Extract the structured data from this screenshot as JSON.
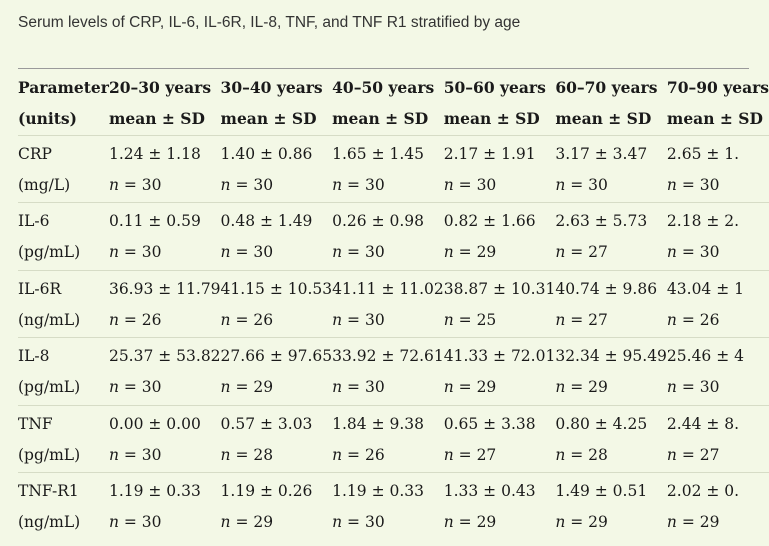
{
  "caption": "Serum levels of CRP, IL-6, IL-6R, IL-8, TNF, and TNF R1 stratified by age",
  "header": {
    "param": [
      "Parameter",
      "(units)"
    ],
    "groups": [
      {
        "age": "20–30 years",
        "stat": "mean ± SD"
      },
      {
        "age": "30–40 years",
        "stat": "mean ± SD"
      },
      {
        "age": "40–50 years",
        "stat": "mean ± SD"
      },
      {
        "age": "50–60 years",
        "stat": "mean ± SD"
      },
      {
        "age": "60–70 years",
        "stat": "mean ± SD"
      },
      {
        "age": "70–90 years",
        "stat": "mean ± SD"
      }
    ]
  },
  "rows": [
    {
      "name": "CRP",
      "unit": "(mg/L)",
      "cells": [
        {
          "val": "1.24 ± 1.18",
          "n": "30"
        },
        {
          "val": "1.40 ± 0.86",
          "n": "30"
        },
        {
          "val": "1.65 ± 1.45",
          "n": "30"
        },
        {
          "val": "2.17 ± 1.91",
          "n": "30"
        },
        {
          "val": "3.17 ± 3.47",
          "n": "30"
        },
        {
          "val": "2.65 ± 1.",
          "n": "30"
        }
      ]
    },
    {
      "name": "IL-6",
      "unit": "(pg/mL)",
      "cells": [
        {
          "val": "0.11 ± 0.59",
          "n": "30"
        },
        {
          "val": "0.48 ± 1.49",
          "n": "30"
        },
        {
          "val": "0.26 ± 0.98",
          "n": "30"
        },
        {
          "val": "0.82 ± 1.66",
          "n": "29"
        },
        {
          "val": "2.63 ± 5.73",
          "n": "27"
        },
        {
          "val": "2.18 ± 2.",
          "n": "30"
        }
      ]
    },
    {
      "name": "IL-6R",
      "unit": "(ng/mL)",
      "cells": [
        {
          "val": "36.93 ± 11.79",
          "n": "26"
        },
        {
          "val": "41.15 ± 10.53",
          "n": "26"
        },
        {
          "val": "41.11 ± 11.02",
          "n": "30"
        },
        {
          "val": "38.87 ± 10.31",
          "n": "25"
        },
        {
          "val": "40.74 ± 9.86",
          "n": "27"
        },
        {
          "val": "43.04 ± 1",
          "n": "26"
        }
      ]
    },
    {
      "name": "IL-8",
      "unit": "(pg/mL)",
      "cells": [
        {
          "val": "25.37 ± 53.82",
          "n": "30"
        },
        {
          "val": "27.66 ± 97.65",
          "n": "29"
        },
        {
          "val": "33.92 ± 72.61",
          "n": "30"
        },
        {
          "val": "41.33 ± 72.01",
          "n": "29"
        },
        {
          "val": "32.34 ± 95.49",
          "n": "29"
        },
        {
          "val": "25.46 ± 4",
          "n": "30"
        }
      ]
    },
    {
      "name": "TNF",
      "unit": "(pg/mL)",
      "cells": [
        {
          "val": "0.00 ± 0.00",
          "n": "30"
        },
        {
          "val": "0.57 ± 3.03",
          "n": "28"
        },
        {
          "val": "1.84 ± 9.38",
          "n": "26"
        },
        {
          "val": "0.65 ± 3.38",
          "n": "27"
        },
        {
          "val": "0.80 ± 4.25",
          "n": "28"
        },
        {
          "val": "2.44 ± 8.",
          "n": "27"
        }
      ]
    },
    {
      "name": "TNF-R1",
      "unit": "(ng/mL)",
      "cells": [
        {
          "val": "1.19 ± 0.33",
          "n": "30"
        },
        {
          "val": "1.19 ± 0.26",
          "n": "29"
        },
        {
          "val": "1.19 ± 0.33",
          "n": "30"
        },
        {
          "val": "1.33 ± 0.43",
          "n": "29"
        },
        {
          "val": "1.49 ± 0.51",
          "n": "29"
        },
        {
          "val": "2.02 ± 0.",
          "n": "29"
        }
      ]
    }
  ],
  "n_label": "n",
  "n_sep": " = "
}
